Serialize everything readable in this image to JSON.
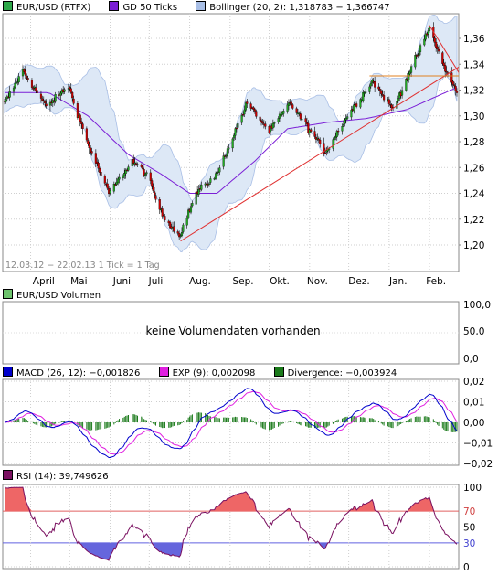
{
  "price_panel": {
    "legend": [
      {
        "label": "EUR/USD (RTFX)",
        "color": "#2ea84a"
      },
      {
        "label": "GD 50 Ticks",
        "color": "#7b1fd6"
      },
      {
        "label": "Bollinger (20, 2): 1,318783 − 1,366747",
        "color": "#a9bfe6"
      }
    ],
    "info": "12.03.12 − 22.02.13   1 Tick = 1 Tag",
    "y_ticks": [
      "1,36",
      "1,34",
      "1,32",
      "1,30",
      "1,28",
      "1,26",
      "1,24",
      "1,22",
      "1,20"
    ],
    "x_ticks": [
      "April",
      "Mai",
      "Juni",
      "Juli",
      "Aug.",
      "Sep.",
      "Okt.",
      "Nov.",
      "Dez.",
      "Jan.",
      "Feb."
    ]
  },
  "volume_panel": {
    "legend": {
      "label": "EUR/USD Volumen",
      "color": "#6ec46e"
    },
    "message": "keine Volumendaten vorhanden",
    "y_ticks": [
      "100,0",
      "50,0",
      "0,0"
    ]
  },
  "macd_panel": {
    "legend": [
      {
        "label": "MACD (26, 12): −0,001826",
        "color": "#0000cc"
      },
      {
        "label": "EXP (9): 0,002098",
        "color": "#e020e0"
      },
      {
        "label": "Divergence: −0,003924",
        "color": "#1a7a1a"
      }
    ],
    "y_ticks": [
      "0,02",
      "0,01",
      "0,00",
      "−0,01",
      "−0,02"
    ]
  },
  "rsi_panel": {
    "legend": {
      "label": "RSI (14): 39,749626",
      "color": "#7a1060"
    },
    "y_ticks": [
      "100",
      "70",
      "50",
      "30",
      "0"
    ]
  },
  "colors": {
    "up": "#22aa22",
    "down": "#cc0000",
    "band": "#dde8f6",
    "ma": "#7b1fd6",
    "trend": "#e03030",
    "resistance": "#e08020",
    "macd": "#0000cc",
    "signal": "#e020e0",
    "divergence": "#1a7a1a",
    "rsi": "#7a1060"
  },
  "chart_data": [
    {
      "type": "candlestick",
      "title": "EUR/USD (RTFX)",
      "period": "12.03.12 − 22.02.13",
      "ylim": [
        1.195,
        1.375
      ],
      "months": [
        "April",
        "Mai",
        "Juni",
        "Juli",
        "Aug.",
        "Sep.",
        "Okt.",
        "Nov.",
        "Dez.",
        "Jan.",
        "Feb."
      ],
      "close_path": [
        {
          "date": "2012-03-12",
          "value": 1.31
        },
        {
          "date": "2012-03-26",
          "value": 1.335
        },
        {
          "date": "2012-04-13",
          "value": 1.307
        },
        {
          "date": "2012-04-30",
          "value": 1.323
        },
        {
          "date": "2012-05-15",
          "value": 1.278
        },
        {
          "date": "2012-05-31",
          "value": 1.24
        },
        {
          "date": "2012-06-18",
          "value": 1.265
        },
        {
          "date": "2012-06-29",
          "value": 1.255
        },
        {
          "date": "2012-07-10",
          "value": 1.225
        },
        {
          "date": "2012-07-24",
          "value": 1.207
        },
        {
          "date": "2012-08-06",
          "value": 1.24
        },
        {
          "date": "2012-08-22",
          "value": 1.255
        },
        {
          "date": "2012-09-14",
          "value": 1.31
        },
        {
          "date": "2012-10-01",
          "value": 1.288
        },
        {
          "date": "2012-10-17",
          "value": 1.31
        },
        {
          "date": "2012-11-13",
          "value": 1.272
        },
        {
          "date": "2012-11-30",
          "value": 1.3
        },
        {
          "date": "2012-12-19",
          "value": 1.327
        },
        {
          "date": "2013-01-04",
          "value": 1.305
        },
        {
          "date": "2013-01-17",
          "value": 1.335
        },
        {
          "date": "2013-02-01",
          "value": 1.368
        },
        {
          "date": "2013-02-12",
          "value": 1.338
        },
        {
          "date": "2013-02-22",
          "value": 1.318
        }
      ],
      "gd50_path": [
        {
          "date": "2012-03-12",
          "value": 1.318
        },
        {
          "date": "2012-04-15",
          "value": 1.318
        },
        {
          "date": "2012-05-15",
          "value": 1.3
        },
        {
          "date": "2012-06-15",
          "value": 1.27
        },
        {
          "date": "2012-07-10",
          "value": 1.255
        },
        {
          "date": "2012-08-01",
          "value": 1.24
        },
        {
          "date": "2012-08-22",
          "value": 1.24
        },
        {
          "date": "2012-09-20",
          "value": 1.265
        },
        {
          "date": "2012-10-15",
          "value": 1.29
        },
        {
          "date": "2012-11-15",
          "value": 1.295
        },
        {
          "date": "2012-12-15",
          "value": 1.298
        },
        {
          "date": "2013-01-15",
          "value": 1.305
        },
        {
          "date": "2013-02-22",
          "value": 1.322
        }
      ],
      "bollinger_last": {
        "lower": 1.318783,
        "upper": 1.366747
      },
      "trendlines": [
        {
          "name": "support",
          "from": {
            "date": "2012-07-25",
            "value": 1.203
          },
          "to": {
            "date": "2013-03-10",
            "value": 1.347
          }
        },
        {
          "name": "resistance-down",
          "from": {
            "date": "2013-02-01",
            "value": 1.37
          },
          "to": {
            "date": "2013-03-10",
            "value": 1.31
          }
        },
        {
          "name": "horizontal",
          "from": {
            "date": "2012-12-17",
            "value": 1.331
          },
          "to": {
            "date": "2013-03-10",
            "value": 1.331
          }
        }
      ]
    },
    {
      "type": "line",
      "title": "MACD (26, 12)",
      "ylim": [
        -0.025,
        0.025
      ],
      "last": {
        "macd": -0.001826,
        "signal": 0.002098,
        "divergence": -0.003924
      }
    },
    {
      "type": "line",
      "title": "RSI (14)",
      "ylim": [
        0,
        100
      ],
      "levels": [
        30,
        70
      ],
      "last": 39.749626
    }
  ]
}
